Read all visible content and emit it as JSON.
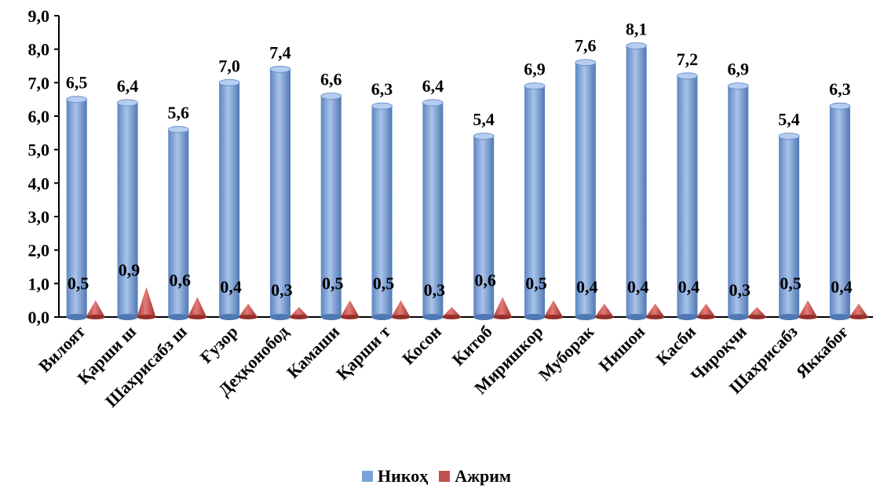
{
  "chart_data": {
    "type": "bar",
    "categories": [
      "Вилоят",
      "Қарши ш",
      "Шахрисабз ш",
      "Ғузор",
      "Деҳқонобод",
      "Камаши",
      "Қарши т",
      "Косон",
      "Китоб",
      "Миришкор",
      "Муборак",
      "Нишон",
      "Касби",
      "Чироқчи",
      "Шахрисабз",
      "Яккабоғ"
    ],
    "series": [
      {
        "name": "Никоҳ",
        "color": "#7aa1d8",
        "values": [
          6.5,
          6.4,
          5.6,
          7.0,
          7.4,
          6.6,
          6.3,
          6.4,
          5.4,
          6.9,
          7.6,
          8.1,
          7.2,
          6.9,
          5.4,
          6.3
        ],
        "labels": [
          "6,5",
          "6,4",
          "5,6",
          "7,0",
          "7,4",
          "6,6",
          "6,3",
          "6,4",
          "5,4",
          "6,9",
          "7,6",
          "8,1",
          "7,2",
          "6,9",
          "5,4",
          "6,3"
        ]
      },
      {
        "name": "Ажрим",
        "color": "#c0504d",
        "values": [
          0.5,
          0.9,
          0.6,
          0.4,
          0.3,
          0.5,
          0.5,
          0.3,
          0.6,
          0.5,
          0.4,
          0.4,
          0.4,
          0.3,
          0.5,
          0.4
        ],
        "labels": [
          "0,5",
          "0,9",
          "0,6",
          "0,4",
          "0,3",
          "0,5",
          "0,5",
          "0,3",
          "0,6",
          "0,5",
          "0,4",
          "0,4",
          "0,4",
          "0,3",
          "0,5",
          "0,4"
        ]
      }
    ],
    "ylim": [
      0,
      9
    ],
    "yticks": [
      "0,0",
      "1,0",
      "2,0",
      "3,0",
      "4,0",
      "5,0",
      "6,0",
      "7,0",
      "8,0",
      "9,0"
    ],
    "grid": false,
    "legend_position": "bottom"
  }
}
